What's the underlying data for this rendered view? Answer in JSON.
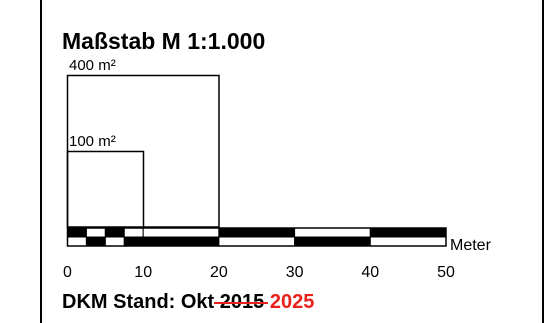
{
  "title": "Maßstab M 1:1.000",
  "areas": [
    {
      "label": "400 m²",
      "side_m": 20
    },
    {
      "label": "100 m²",
      "side_m": 10
    }
  ],
  "scale_bar": {
    "unit": "Meter",
    "ticks": [
      "0",
      "10",
      "20",
      "30",
      "40",
      "50"
    ],
    "max_m": 50,
    "major_step_m": 10,
    "fine_division_m": 2.5
  },
  "footer": {
    "prefix": "DKM Stand: Okt",
    "old_year": "2015",
    "new_year": "2025"
  },
  "colors": {
    "ink": "#000000",
    "correction": "#e8211b"
  }
}
